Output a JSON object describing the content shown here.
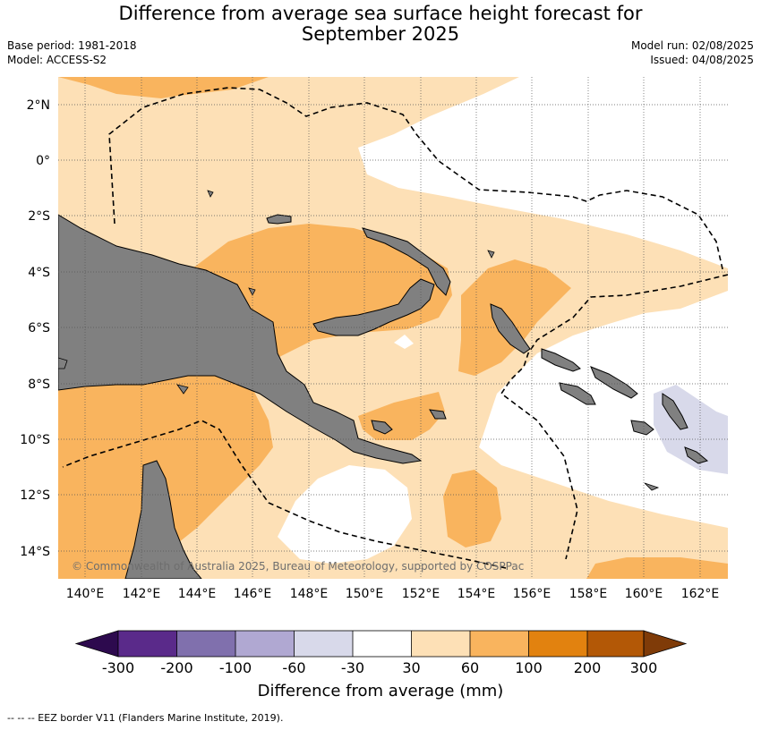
{
  "title_line1": "Difference from average sea surface height forecast for",
  "title_line2": "September 2025",
  "base_period": "Base period: 1981-2018",
  "model": "Model: ACCESS-S2",
  "model_run": "Model run: 02/08/2025",
  "issued": "Issued: 04/08/2025",
  "lat_labels": [
    "2°N",
    "0°",
    "2°S",
    "4°S",
    "6°S",
    "8°S",
    "10°S",
    "12°S",
    "14°S"
  ],
  "lon_labels": [
    "140°E",
    "142°E",
    "144°E",
    "146°E",
    "148°E",
    "150°E",
    "152°E",
    "154°E",
    "156°E",
    "158°E",
    "160°E",
    "162°E"
  ],
  "copyright": "© Commonwealth of Australia 2025, Bureau of Meteorology, supported by COSPPac",
  "colorbar": {
    "label": "Difference from average (mm)",
    "ticks": [
      "-300",
      "-200",
      "-100",
      "-60",
      "-30",
      "30",
      "60",
      "100",
      "200",
      "300"
    ],
    "colors": {
      "below_-300": "#2d0a4e",
      "-300_-200": "#5a2a8a",
      "-200_-100": "#8070ad",
      "-100_-60": "#b0a8d2",
      "-60_-30": "#d8d9ea",
      "-30_30": "#ffffff",
      "30_60": "#fde0b6",
      "60_100": "#f9b45e",
      "100_200": "#e2820f",
      "200_300": "#b35806",
      "above_300": "#7f3b08"
    }
  },
  "land_color": "#808080",
  "legend_footer": "--  --  -- EEZ border V11 (Flanders Marine Institute, 2019)."
}
